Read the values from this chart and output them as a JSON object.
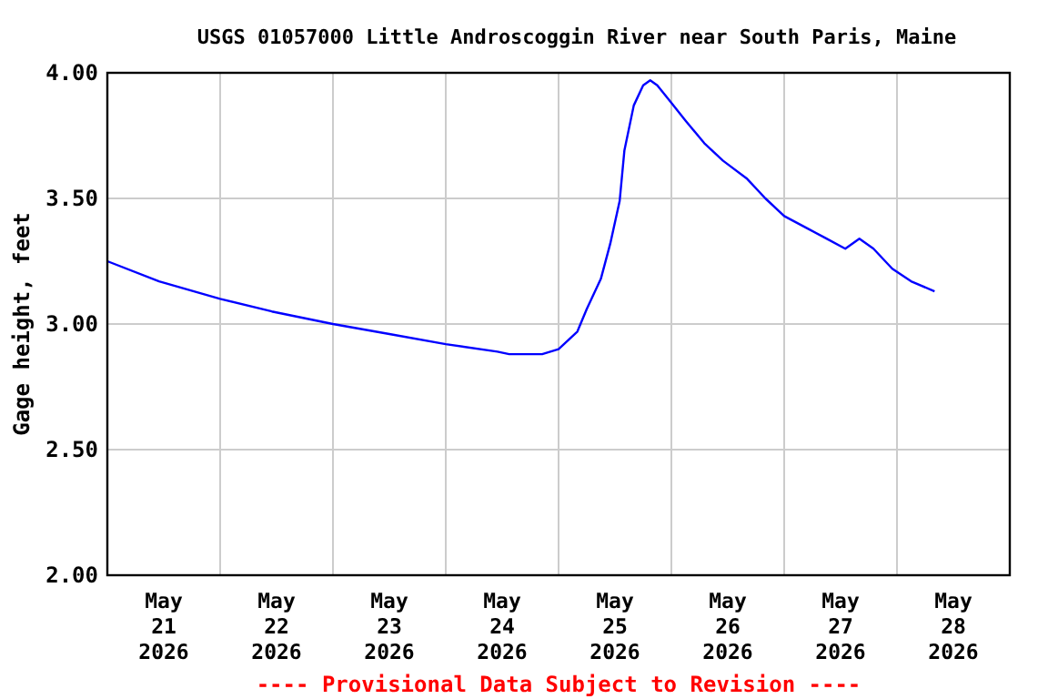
{
  "chart_data": {
    "type": "line",
    "title": "USGS 01057000 Little Androscoggin River near South Paris, Maine",
    "ylabel": "Gage height, feet",
    "annotations": [
      "---- Provisional Data Subject to Revision ----"
    ],
    "x": [
      "2026-05-21T00:00",
      "2026-05-21T11:00",
      "2026-05-22T00:00",
      "2026-05-22T11:00",
      "2026-05-23T00:00",
      "2026-05-23T12:00",
      "2026-05-24T00:00",
      "2026-05-24T11:00",
      "2026-05-24T13:30",
      "2026-05-24T20:30",
      "2026-05-25T00:00",
      "2026-05-25T04:00",
      "2026-05-25T06:00",
      "2026-05-25T09:00",
      "2026-05-25T11:00",
      "2026-05-25T13:00",
      "2026-05-25T14:00",
      "2026-05-25T16:00",
      "2026-05-25T18:00",
      "2026-05-25T19:30",
      "2026-05-25T21:00",
      "2026-05-26T00:00",
      "2026-05-26T03:00",
      "2026-05-26T07:00",
      "2026-05-26T11:00",
      "2026-05-26T16:00",
      "2026-05-26T20:00",
      "2026-05-27T00:00",
      "2026-05-27T05:00",
      "2026-05-27T09:00",
      "2026-05-27T13:00",
      "2026-05-27T16:00",
      "2026-05-27T19:00",
      "2026-05-27T23:00",
      "2026-05-28T03:00",
      "2026-05-28T08:00"
    ],
    "series": [
      {
        "color": "#0000ff",
        "values": [
          3.25,
          3.17,
          3.1,
          3.05,
          3.0,
          2.96,
          2.92,
          2.89,
          2.88,
          2.88,
          2.9,
          2.97,
          3.06,
          3.18,
          3.32,
          3.49,
          3.69,
          3.87,
          3.95,
          3.97,
          3.95,
          3.88,
          3.81,
          3.72,
          3.65,
          3.58,
          3.5,
          3.43,
          3.38,
          3.34,
          3.3,
          3.34,
          3.3,
          3.22,
          3.17,
          3.13
        ]
      }
    ],
    "xlim": [
      "2026-05-21T00:00",
      "2026-05-29T00:00"
    ],
    "xticks": [
      {
        "value": "2026-05-21T00:00",
        "label": null
      },
      {
        "value": "2026-05-21T12:00",
        "label": "May 21 2026"
      },
      {
        "value": "2026-05-22T00:00",
        "label": null
      },
      {
        "value": "2026-05-22T12:00",
        "label": "May 22 2026"
      },
      {
        "value": "2026-05-23T00:00",
        "label": null
      },
      {
        "value": "2026-05-23T12:00",
        "label": "May 23 2026"
      },
      {
        "value": "2026-05-24T00:00",
        "label": null
      },
      {
        "value": "2026-05-24T12:00",
        "label": "May 24 2026"
      },
      {
        "value": "2026-05-25T00:00",
        "label": null
      },
      {
        "value": "2026-05-25T12:00",
        "label": "May 25 2026"
      },
      {
        "value": "2026-05-26T00:00",
        "label": null
      },
      {
        "value": "2026-05-26T12:00",
        "label": "May 26 2026"
      },
      {
        "value": "2026-05-27T00:00",
        "label": null
      },
      {
        "value": "2026-05-27T12:00",
        "label": "May 27 2026"
      },
      {
        "value": "2026-05-28T00:00",
        "label": null
      },
      {
        "value": "2026-05-28T12:00",
        "label": "May 28 2026"
      },
      {
        "value": "2026-05-29T00:00",
        "label": null
      }
    ],
    "ylim": [
      2.0,
      4.0
    ],
    "yticks": [
      {
        "value": 2.0,
        "label": "2.00"
      },
      {
        "value": 2.5,
        "label": "2.50"
      },
      {
        "value": 3.0,
        "label": "3.00"
      },
      {
        "value": 3.5,
        "label": "3.50"
      },
      {
        "value": 4.0,
        "label": "4.00"
      }
    ],
    "grid": true,
    "marker": "none",
    "line_style": "solid"
  }
}
